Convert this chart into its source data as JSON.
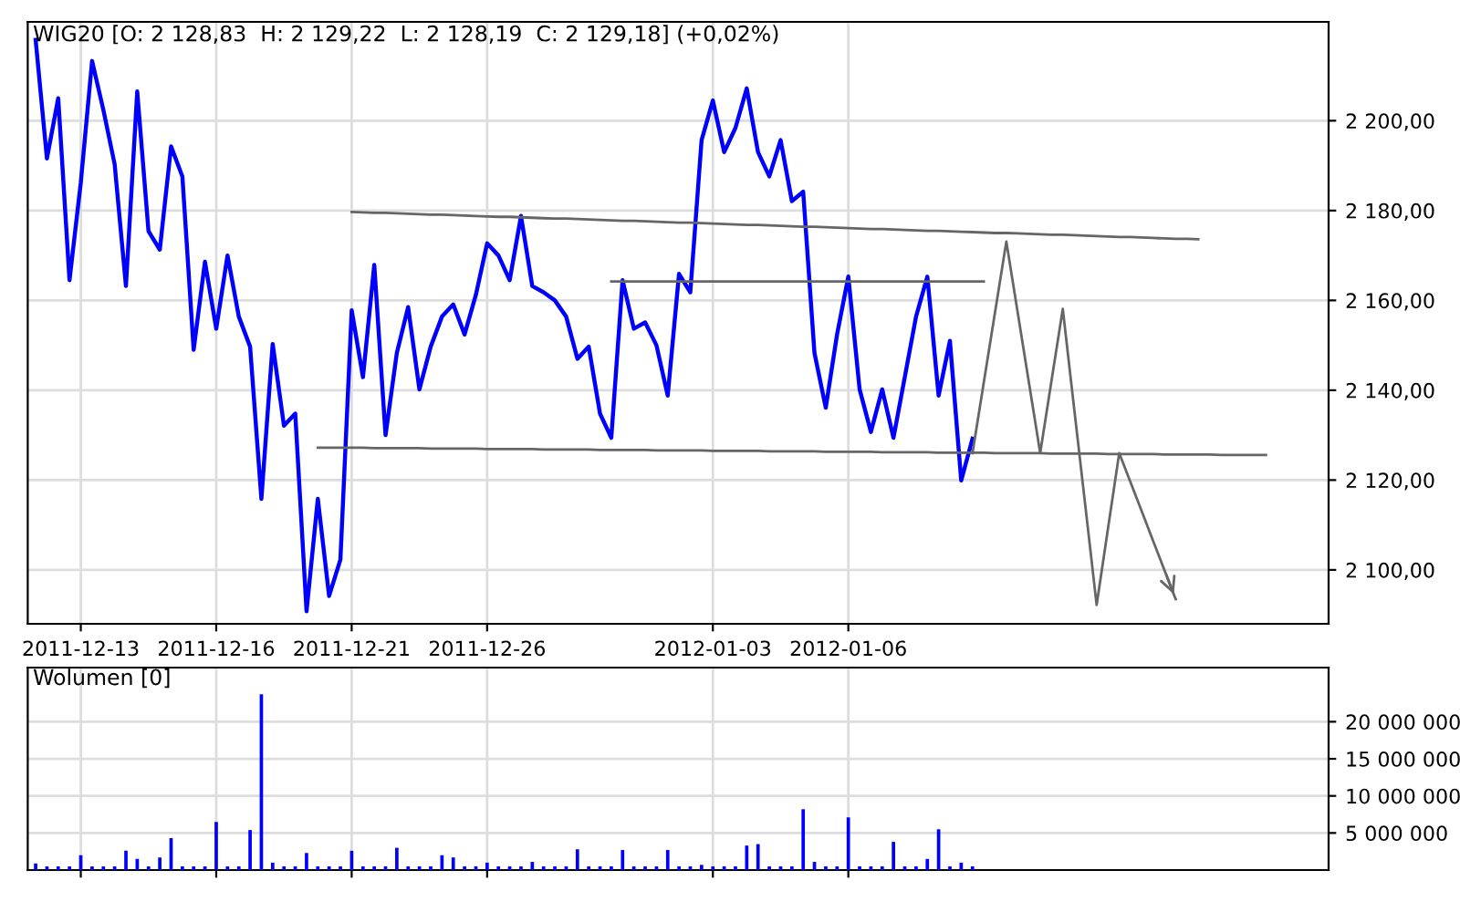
{
  "chart_data": [
    {
      "type": "line",
      "title": "WIG20 [O: 2 128,83  H: 2 129,22  L: 2 128,19  C: 2 129,18] (+0,02%)",
      "categories": [
        null,
        null,
        null,
        null,
        "2011-12-13",
        null,
        null,
        null,
        null,
        null,
        null,
        null,
        null,
        null,
        null,
        null,
        "2011-12-16",
        null,
        null,
        null,
        null,
        null,
        null,
        null,
        null,
        null,
        null,
        null,
        "2011-12-21",
        null,
        null,
        null,
        null,
        null,
        null,
        null,
        null,
        null,
        null,
        null,
        "2011-12-26",
        null,
        null,
        null,
        null,
        null,
        null,
        null,
        null,
        null,
        null,
        null,
        null,
        null,
        null,
        null,
        null,
        null,
        null,
        null,
        "2012-01-03",
        null,
        null,
        null,
        null,
        null,
        null,
        null,
        null,
        null,
        null,
        null,
        "2012-01-06",
        null,
        null,
        null,
        null,
        null,
        null,
        null,
        null,
        null,
        null,
        null,
        null,
        null,
        null,
        null,
        null,
        null,
        null,
        null,
        null,
        null,
        null,
        null,
        null,
        null,
        null,
        null,
        null,
        null,
        null,
        null,
        null,
        null,
        null,
        null,
        null,
        null,
        null,
        null,
        null,
        null,
        null
      ],
      "ylim": [
        2088,
        2222
      ],
      "yticks": [
        {
          "value": 2100,
          "label": "2 100,00"
        },
        {
          "value": 2120,
          "label": "2 120,00"
        },
        {
          "value": 2140,
          "label": "2 140,00"
        },
        {
          "value": 2160,
          "label": "2 160,00"
        },
        {
          "value": 2180,
          "label": "2 180,00"
        },
        {
          "value": 2200,
          "label": "2 200,00"
        }
      ],
      "grid": true,
      "marker": "none",
      "line_style": "solid",
      "series": [
        {
          "color": "#0000ff",
          "values": [
            2218,
            2191.6,
            2205,
            2164.5,
            2186.2,
            2213.3,
            2202.4,
            2190.3,
            2163.2,
            2206.5,
            2175.4,
            2171.3,
            2194.3,
            2187.6,
            2149,
            2168.6,
            2153.7,
            2170,
            2156.4,
            2149.7,
            2115.8,
            2150.3,
            2132.1,
            2134.8,
            2090.8,
            2115.8,
            2094.2,
            2102.3,
            2157.8,
            2142.9,
            2167.9,
            2130,
            2148.3,
            2158.5,
            2140.2,
            2149.7,
            2156.4,
            2159.1,
            2152.4,
            2161.2,
            2172.7,
            2170,
            2164.5,
            2178.8,
            2163.2,
            2161.8,
            2160,
            2156.4,
            2147,
            2149.7,
            2134.8,
            2129.4,
            2164.5,
            2153.7,
            2155.1,
            2150,
            2138.8,
            2165.9,
            2161.8,
            2195.7,
            2204.5,
            2193,
            2198.4,
            2207.2,
            2193,
            2187.6,
            2195.7,
            2182.1,
            2184.2,
            2148.3,
            2136.1,
            2152.4,
            2165.3,
            2140.2,
            2130.7,
            2140.2,
            2129.4,
            2142.9,
            2156.4,
            2165.3,
            2138.8,
            2151,
            2119.9,
            2129.2,
            null,
            null,
            null,
            null,
            null,
            null,
            null,
            null,
            null,
            null,
            null,
            null,
            null,
            null,
            null,
            null,
            null,
            null,
            null,
            null,
            null,
            null,
            null,
            null,
            null,
            null,
            null,
            null,
            null,
            null,
            null
          ]
        },
        {
          "color": "#666666",
          "values": [
            null,
            null,
            null,
            null,
            null,
            null,
            null,
            null,
            null,
            null,
            null,
            null,
            null,
            null,
            null,
            null,
            null,
            null,
            null,
            null,
            null,
            null,
            null,
            null,
            null,
            null,
            null,
            null,
            2179.7,
            2179.6,
            2179.5,
            2179.5,
            2179.4,
            2179.3,
            2179.2,
            2179.1,
            2179.1,
            2179.0,
            2178.9,
            2178.8,
            2178.7,
            2178.6,
            2178.6,
            2178.5,
            2178.4,
            2178.3,
            2178.2,
            2178.2,
            2178.1,
            2178.0,
            2177.9,
            2177.8,
            2177.7,
            2177.7,
            2177.6,
            2177.5,
            2177.4,
            2177.3,
            2177.3,
            2177.2,
            2177.1,
            2177.0,
            2176.9,
            2176.8,
            2176.8,
            2176.7,
            2176.6,
            2176.5,
            2176.4,
            2176.4,
            2176.3,
            2176.2,
            2176.1,
            2176.0,
            2175.9,
            2175.9,
            2175.8,
            2175.7,
            2175.6,
            2175.5,
            2175.5,
            2175.4,
            2175.3,
            2175.2,
            2175.1,
            2175.0,
            2175.0,
            2174.9,
            2174.8,
            2174.7,
            2174.6,
            2174.6,
            2174.5,
            2174.4,
            2174.3,
            2174.2,
            2174.1,
            2174.1,
            2174.0,
            2173.9,
            2173.8,
            2173.7,
            2173.7,
            2173.6,
            null,
            null,
            null,
            null,
            null,
            null,
            null,
            null,
            null,
            null,
            null
          ]
        },
        {
          "color": "#666666",
          "values": [
            null,
            null,
            null,
            null,
            null,
            null,
            null,
            null,
            null,
            null,
            null,
            null,
            null,
            null,
            null,
            null,
            null,
            null,
            null,
            null,
            null,
            null,
            null,
            null,
            null,
            null,
            null,
            null,
            null,
            null,
            null,
            null,
            null,
            null,
            null,
            null,
            null,
            null,
            null,
            null,
            null,
            null,
            null,
            null,
            null,
            null,
            null,
            null,
            null,
            null,
            null,
            2164.2,
            2164.2,
            2164.2,
            2164.2,
            2164.2,
            2164.2,
            2164.2,
            2164.2,
            2164.2,
            2164.2,
            2164.2,
            2164.2,
            2164.2,
            2164.2,
            2164.2,
            2164.2,
            2164.2,
            2164.2,
            2164.2,
            2164.2,
            2164.2,
            2164.2,
            2164.2,
            2164.2,
            2164.2,
            2164.2,
            2164.2,
            2164.2,
            2164.2,
            2164.2,
            2164.2,
            2164.2,
            2164.2,
            2164.2,
            null,
            null,
            null,
            null,
            null,
            null,
            null,
            null,
            null,
            null,
            null,
            null,
            null,
            null,
            null,
            null,
            null,
            null,
            null,
            null,
            null,
            null,
            null,
            null,
            null,
            null,
            null,
            null,
            null,
            null
          ]
        },
        {
          "color": "#666666",
          "values": [
            null,
            null,
            null,
            null,
            null,
            null,
            null,
            null,
            null,
            null,
            null,
            null,
            null,
            null,
            null,
            null,
            null,
            null,
            null,
            null,
            null,
            null,
            null,
            null,
            null,
            2127.2,
            2127.2,
            2127.2,
            2127.2,
            2127.2,
            2127.1,
            2127.1,
            2127.1,
            2127.1,
            2127.1,
            2127.0,
            2127.0,
            2127.0,
            2127.0,
            2127.0,
            2126.9,
            2126.9,
            2126.9,
            2126.9,
            2126.9,
            2126.8,
            2126.8,
            2126.8,
            2126.8,
            2126.8,
            2126.7,
            2126.7,
            2126.7,
            2126.7,
            2126.7,
            2126.6,
            2126.6,
            2126.6,
            2126.6,
            2126.6,
            2126.5,
            2126.5,
            2126.5,
            2126.5,
            2126.5,
            2126.4,
            2126.4,
            2126.4,
            2126.4,
            2126.4,
            2126.3,
            2126.3,
            2126.3,
            2126.3,
            2126.3,
            2126.2,
            2126.2,
            2126.2,
            2126.2,
            2126.2,
            2126.1,
            2126.1,
            2126.1,
            2126.1,
            2126.1,
            2126.0,
            2126.0,
            2126.0,
            2126.0,
            2126.0,
            2125.9,
            2125.9,
            2125.9,
            2125.9,
            2125.9,
            2125.8,
            2125.8,
            2125.8,
            2125.8,
            2125.8,
            2125.7,
            2125.7,
            2125.7,
            2125.7,
            2125.7,
            2125.6,
            2125.6,
            2125.6,
            2125.6,
            2125.6,
            null,
            null,
            null,
            null,
            null
          ]
        },
        {
          "color": "#666666",
          "values": [
            null,
            null,
            null,
            null,
            null,
            null,
            null,
            null,
            null,
            null,
            null,
            null,
            null,
            null,
            null,
            null,
            null,
            null,
            null,
            null,
            null,
            null,
            null,
            null,
            null,
            null,
            null,
            null,
            null,
            null,
            null,
            null,
            null,
            null,
            null,
            null,
            null,
            null,
            null,
            null,
            null,
            null,
            null,
            null,
            null,
            null,
            null,
            null,
            null,
            null,
            null,
            null,
            null,
            null,
            null,
            null,
            null,
            null,
            null,
            null,
            null,
            null,
            null,
            null,
            null,
            null,
            null,
            null,
            null,
            null,
            null,
            null,
            null,
            null,
            null,
            null,
            null,
            null,
            null,
            null,
            null,
            null,
            null,
            2126.0,
            2141.7,
            2157.4,
            2173.1,
            2157.4,
            2141.7,
            2126.0,
            2142.1,
            2158.1,
            2136.1,
            2114.2,
            2092.2,
            2109.1,
            2126.0,
            2119.5,
            2113.0,
            2106.5,
            2100.0,
            2093.5,
            null,
            null,
            null,
            null,
            null,
            null,
            null,
            null,
            null,
            null,
            null,
            null,
            null
          ]
        }
      ]
    },
    {
      "type": "bar",
      "title": "Wolumen [0]",
      "color": "#0000ff",
      "categories": [
        null,
        null,
        null,
        null,
        "2011-12-13",
        null,
        null,
        null,
        null,
        null,
        null,
        null,
        null,
        null,
        null,
        null,
        "2011-12-16",
        null,
        null,
        null,
        null,
        null,
        null,
        null,
        null,
        null,
        null,
        null,
        "2011-12-21",
        null,
        null,
        null,
        null,
        null,
        null,
        null,
        null,
        null,
        null,
        null,
        "2011-12-26",
        null,
        null,
        null,
        null,
        null,
        null,
        null,
        null,
        null,
        null,
        null,
        null,
        null,
        null,
        null,
        null,
        null,
        null,
        null,
        "2012-01-03",
        null,
        null,
        null,
        null,
        null,
        null,
        null,
        null,
        null,
        null,
        null,
        "2012-01-06",
        null,
        null,
        null,
        null,
        null,
        null,
        null,
        null,
        null,
        null,
        null,
        null,
        null,
        null,
        null,
        null,
        null,
        null,
        null,
        null,
        null,
        null,
        null,
        null,
        null,
        null,
        null,
        null,
        null,
        null,
        null,
        null,
        null,
        null,
        null,
        null,
        null,
        null,
        null,
        null,
        null,
        null
      ],
      "ylim": [
        0,
        27300000
      ],
      "yticks": [
        {
          "value": 5000000,
          "label": "5 000 000"
        },
        {
          "value": 10000000,
          "label": "10 000 000"
        },
        {
          "value": 15000000,
          "label": "15 000 000"
        },
        {
          "value": 20000000,
          "label": "20 000 000"
        }
      ],
      "grid": true,
      "tick_labels": "y",
      "values": [
        900000,
        500000,
        500000,
        500000,
        2000000,
        500000,
        500000,
        500000,
        2600000,
        1500000,
        500000,
        1700000,
        4300000,
        500000,
        500000,
        500000,
        6500000,
        500000,
        500000,
        5400000,
        23700000,
        1000000,
        500000,
        500000,
        2300000,
        500000,
        500000,
        500000,
        2600000,
        500000,
        500000,
        500000,
        3000000,
        500000,
        500000,
        500000,
        2000000,
        1700000,
        500000,
        500000,
        1000000,
        500000,
        500000,
        500000,
        1100000,
        500000,
        500000,
        500000,
        2800000,
        500000,
        500000,
        500000,
        2700000,
        500000,
        500000,
        500000,
        2700000,
        500000,
        500000,
        700000,
        500000,
        500000,
        500000,
        3300000,
        3500000,
        500000,
        500000,
        500000,
        8200000,
        1100000,
        500000,
        500000,
        7100000,
        500000,
        500000,
        500000,
        3800000,
        500000,
        500000,
        1500000,
        5500000,
        500000,
        1000000,
        500000,
        null,
        null,
        null,
        null,
        null,
        null,
        null,
        null,
        null,
        null,
        null,
        null,
        null,
        null,
        null,
        null,
        null,
        null,
        null,
        null,
        null,
        null,
        null,
        null,
        null,
        null,
        null,
        null,
        null,
        null,
        null
      ]
    }
  ]
}
